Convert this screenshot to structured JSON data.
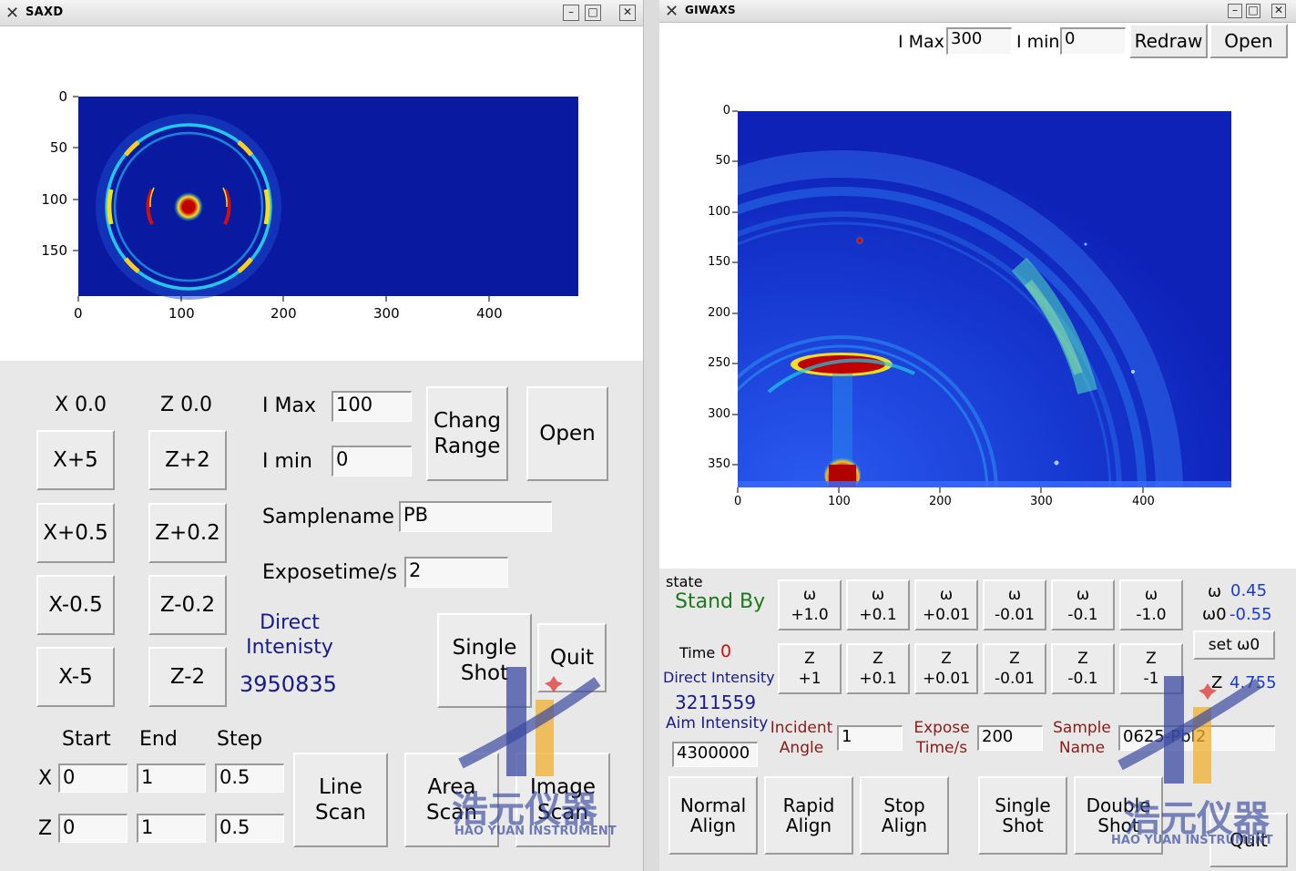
{
  "saxd": {
    "title": "SAXD",
    "plot": {
      "yticks": [
        "0",
        "50",
        "100",
        "150"
      ],
      "xticks": [
        "0",
        "100",
        "200",
        "300",
        "400"
      ]
    },
    "x_readout": "X 0.0",
    "z_readout": "Z 0.0",
    "x_buttons": [
      "X+5",
      "X+0.5",
      "X-0.5",
      "X-5"
    ],
    "z_buttons": [
      "Z+2",
      "Z+0.2",
      "Z-0.2",
      "Z-2"
    ],
    "imax_label": "I Max",
    "imax_value": "100",
    "imin_label": "I min",
    "imin_value": "0",
    "chang_range": "Chang\nRange",
    "open": "Open",
    "samplename_label": "Samplename",
    "samplename_value": "PB",
    "exposetime_label": "Exposetime/s",
    "exposetime_value": "2",
    "direct_label": "Direct\nIntenisty",
    "direct_value": "3950835",
    "single_shot": "Single\nShot",
    "quit": "Quit",
    "scan_headers": [
      "Start",
      "End",
      "Step"
    ],
    "row_x_label": "X",
    "row_z_label": "Z",
    "row_x_values": [
      "0",
      "1",
      "0.5"
    ],
    "row_z_values": [
      "0",
      "1",
      "0.5"
    ],
    "line_scan": "Line\nScan",
    "area_scan": "Area\nScan",
    "image_scan": "Image\nScan"
  },
  "giwaxs": {
    "title": "GIWAXS",
    "imax_label": "I Max",
    "imax_value": "300",
    "imin_label": "I min",
    "imin_value": "0",
    "redraw": "Redraw",
    "open": "Open",
    "plot": {
      "yticks": [
        "0",
        "50",
        "100",
        "150",
        "200",
        "250",
        "300",
        "350"
      ],
      "xticks": [
        "0",
        "100",
        "200",
        "300",
        "400"
      ]
    },
    "state_label": "state",
    "state_value": "Stand By",
    "time_label": "Time",
    "time_value": "0",
    "direct_label": "Direct Intensity",
    "direct_value": "3211559",
    "aim_label": "Aim Intensity",
    "aim_value": "4300000",
    "omega_buttons": [
      "ω\n+1.0",
      "ω\n+0.1",
      "ω\n+0.01",
      "ω\n-0.01",
      "ω\n-0.1",
      "ω\n-1.0"
    ],
    "z_buttons": [
      "Z\n+1",
      "Z\n+0.1",
      "Z\n+0.01",
      "Z\n-0.01",
      "Z\n-0.1",
      "Z\n-1"
    ],
    "omega_label": "ω",
    "omega_value": "0.45",
    "omega0_label": "ω0",
    "omega0_value": "-0.55",
    "set_omega0": "set ω0",
    "z_label": "Z",
    "z_value": "4.755",
    "incident_label": "Incident\nAngle",
    "incident_value": "1",
    "expose_label": "Expose\nTime/s",
    "expose_value": "200",
    "sample_label": "Sample\nName",
    "sample_value": "0625-PbI2",
    "normal_align": "Normal\nAlign",
    "rapid_align": "Rapid\nAlign",
    "stop_align": "Stop\nAlign",
    "single_shot": "Single\nShot",
    "double_shot": "Double\nShot",
    "quit": "Quit"
  },
  "watermark": {
    "brand_cn": "浩元仪器",
    "brand_en": "HAO YUAN  INSTRUMENT"
  },
  "colors": {
    "plot_bg": "#0a1a9a",
    "ring": "#2ad0e8",
    "hot": "#c00000",
    "panel": "#e8e8e8"
  }
}
